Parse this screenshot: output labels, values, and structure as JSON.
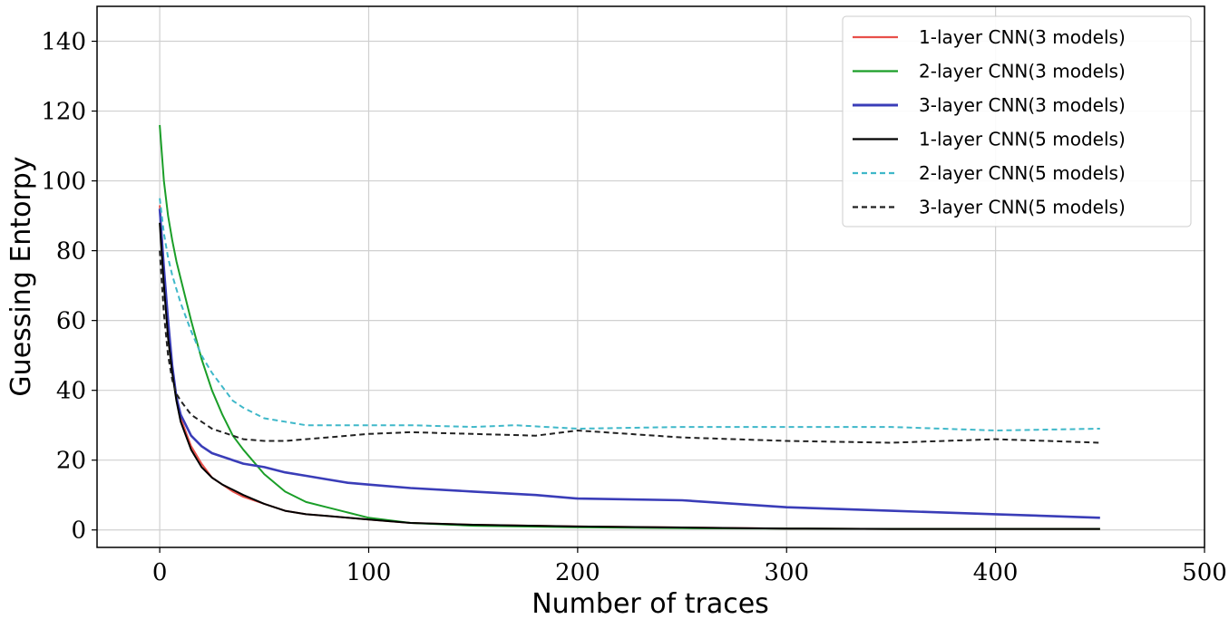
{
  "chart_data": {
    "type": "line",
    "xlabel": "Number of traces",
    "ylabel": "Guessing Entorpy",
    "xlim": [
      -30,
      500
    ],
    "ylim": [
      -5,
      150
    ],
    "xticks": [
      0,
      100,
      200,
      300,
      400,
      500
    ],
    "yticks": [
      0,
      20,
      40,
      60,
      80,
      100,
      120,
      140
    ],
    "grid": true,
    "legend_position": "top-right",
    "series": [
      {
        "name": "1-layer CNN(3 models)",
        "color": "#e8504a",
        "style": "solid",
        "x": [
          0,
          2,
          4,
          6,
          8,
          10,
          15,
          20,
          25,
          30,
          35,
          40,
          50,
          60,
          70,
          80,
          90,
          100,
          120,
          150,
          200,
          250,
          300,
          350,
          400,
          450
        ],
        "y": [
          93,
          75,
          58,
          46,
          38,
          32,
          24,
          19,
          15,
          13,
          11,
          9.5,
          7.5,
          5.5,
          4.5,
          4,
          3.5,
          3,
          2,
          1.5,
          1,
          0.7,
          0.4,
          0.3,
          0.3,
          0.3
        ]
      },
      {
        "name": "2-layer CNN(3 models)",
        "color": "#1a9e28",
        "style": "solid",
        "x": [
          0,
          2,
          4,
          6,
          8,
          10,
          15,
          20,
          25,
          30,
          35,
          40,
          50,
          60,
          70,
          80,
          90,
          100,
          120,
          150,
          200,
          250,
          300,
          350,
          400,
          450
        ],
        "y": [
          116,
          100,
          90,
          83,
          77,
          72,
          60,
          49,
          40,
          33,
          27,
          23,
          16,
          11,
          8,
          6.5,
          5,
          3.5,
          2,
          1.2,
          0.8,
          0.5,
          0.4,
          0.3,
          0.3,
          0.3
        ]
      },
      {
        "name": "3-layer CNN(3 models)",
        "color": "#3a3db8",
        "style": "solid",
        "x": [
          0,
          2,
          4,
          6,
          8,
          10,
          15,
          20,
          25,
          30,
          40,
          50,
          60,
          70,
          80,
          90,
          100,
          120,
          150,
          180,
          200,
          250,
          300,
          350,
          400,
          450
        ],
        "y": [
          92,
          75,
          60,
          47,
          38,
          33,
          27,
          24,
          22,
          21,
          19,
          18,
          16.5,
          15.5,
          14.5,
          13.5,
          13,
          12,
          11,
          10,
          9,
          8.5,
          6.5,
          5.5,
          4.5,
          3.5
        ]
      },
      {
        "name": "1-layer CNN(5 models)",
        "color": "#000000",
        "style": "solid",
        "x": [
          0,
          2,
          4,
          6,
          8,
          10,
          15,
          20,
          25,
          30,
          35,
          40,
          50,
          60,
          70,
          80,
          90,
          100,
          120,
          150,
          200,
          250,
          300,
          350,
          400,
          450
        ],
        "y": [
          88,
          70,
          55,
          45,
          37,
          31,
          23,
          18,
          15,
          13,
          11.5,
          10,
          7.5,
          5.5,
          4.5,
          4,
          3.5,
          3,
          2,
          1.5,
          1,
          0.7,
          0.4,
          0.3,
          0.3,
          0.3
        ]
      },
      {
        "name": "2-layer CNN(5 models)",
        "color": "#3fb8c9",
        "style": "dashed",
        "x": [
          0,
          2,
          4,
          6,
          8,
          10,
          15,
          20,
          25,
          30,
          35,
          40,
          50,
          60,
          70,
          80,
          100,
          120,
          150,
          170,
          200,
          250,
          300,
          350,
          400,
          450
        ],
        "y": [
          95,
          85,
          78,
          73,
          69,
          65,
          57,
          50,
          45,
          41,
          37,
          35,
          32,
          31,
          30,
          30,
          30,
          30,
          29.5,
          30,
          29,
          29.5,
          29.5,
          29.5,
          28.5,
          29
        ]
      },
      {
        "name": "3-layer CNN(5 models)",
        "color": "#222222",
        "style": "dashed",
        "x": [
          0,
          2,
          4,
          6,
          8,
          10,
          15,
          20,
          25,
          30,
          35,
          40,
          50,
          60,
          70,
          80,
          100,
          120,
          150,
          180,
          200,
          250,
          300,
          350,
          400,
          450
        ],
        "y": [
          80,
          62,
          50,
          43,
          39,
          37,
          33,
          31,
          29,
          28,
          27,
          26,
          25.5,
          25.5,
          26,
          26.5,
          27.5,
          28,
          27.5,
          27,
          28.5,
          26.5,
          25.5,
          25,
          26,
          25
        ]
      }
    ]
  }
}
